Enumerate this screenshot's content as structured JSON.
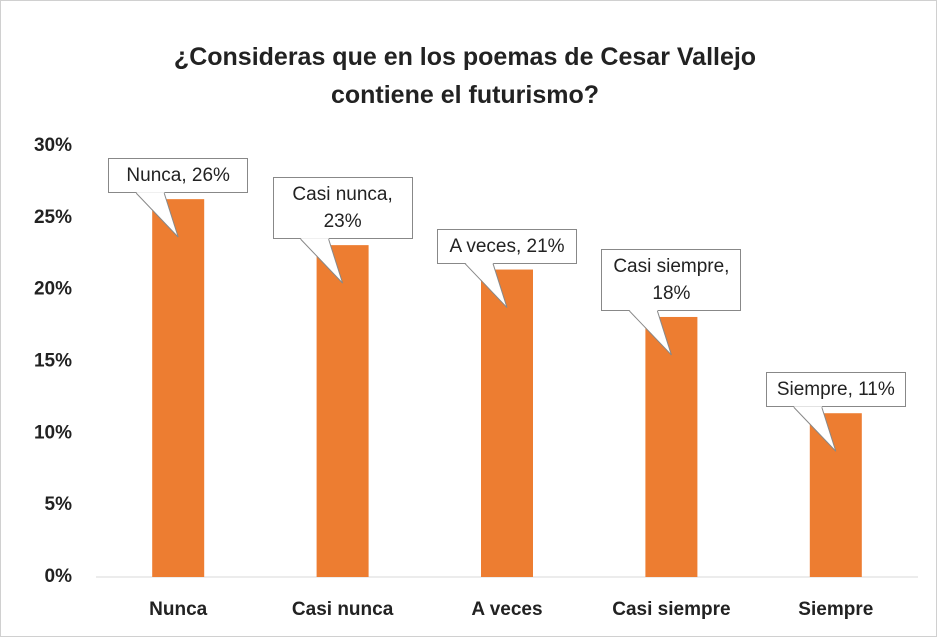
{
  "chart_data": {
    "type": "bar",
    "title": "¿Consideras que en los poemas de Cesar Vallejo contiene el futurismo?",
    "categories": [
      "Nunca",
      "Casi nunca",
      "A veces",
      "Casi siempre",
      "Siempre"
    ],
    "values": [
      26.3,
      23.1,
      21.4,
      18.1,
      11.4
    ],
    "value_labels": [
      "Nunca, 26%",
      "Casi nunca, 23%",
      "A veces, 21%",
      "Casi siempre, 18%",
      "Siempre, 11%"
    ],
    "color": "#ed7d31",
    "ylim": [
      0,
      30
    ],
    "yticks": [
      {
        "value": 0,
        "label": "0%"
      },
      {
        "value": 5,
        "label": "5%"
      },
      {
        "value": 10,
        "label": "10%"
      },
      {
        "value": 15,
        "label": "15%"
      },
      {
        "value": 20,
        "label": "20%"
      },
      {
        "value": 25,
        "label": "25%"
      },
      {
        "value": 30,
        "label": "30%"
      }
    ],
    "grid": false
  }
}
